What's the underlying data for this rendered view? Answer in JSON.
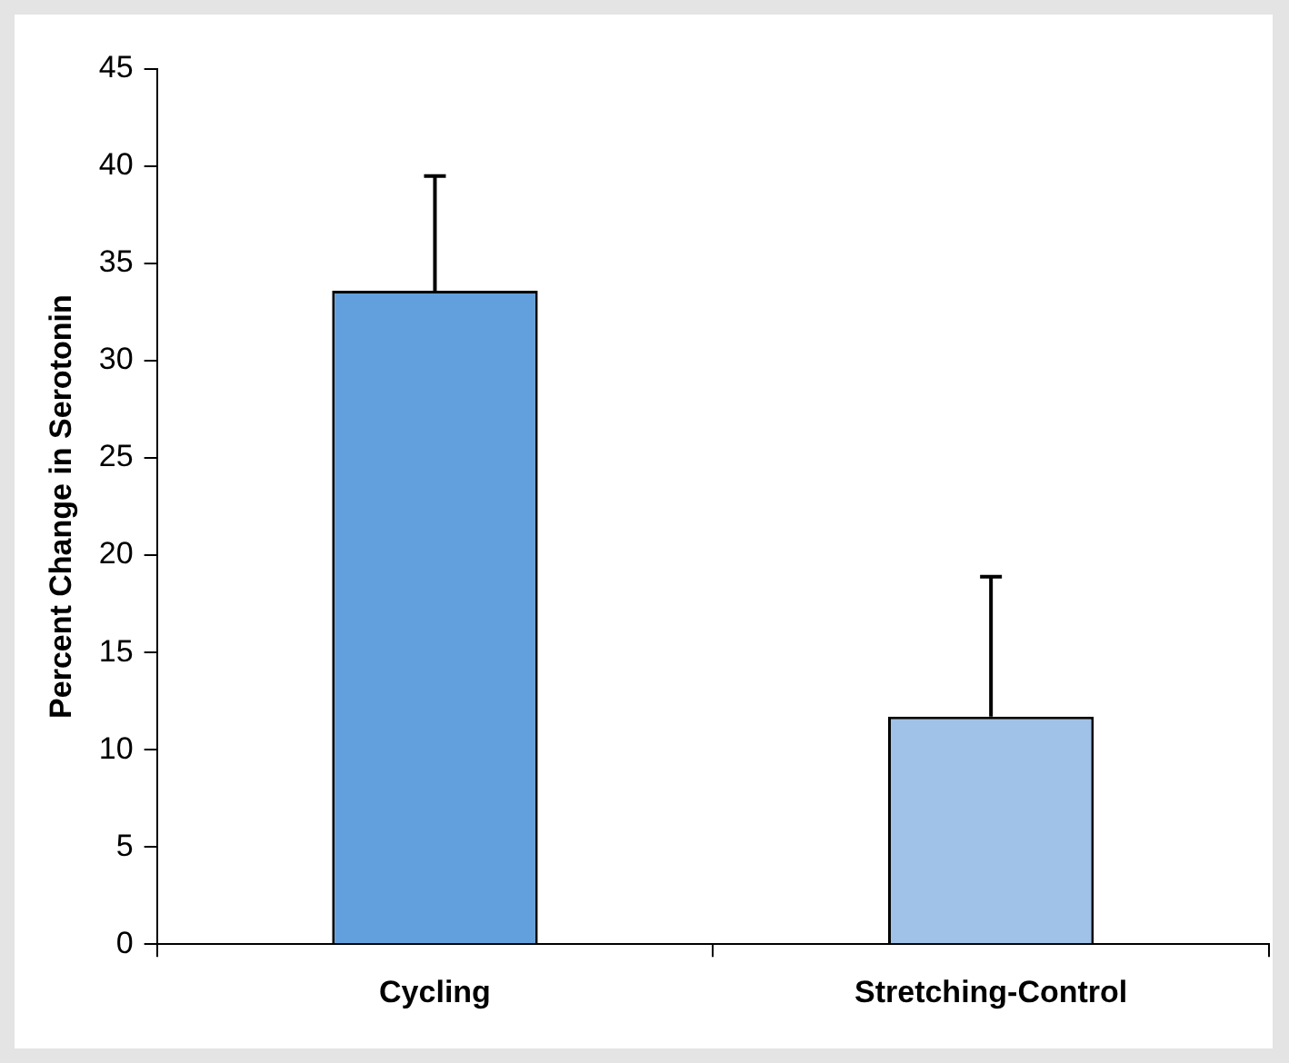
{
  "chart_data": {
    "type": "bar",
    "ylabel": "Percent Change in Serotonin",
    "categories": [
      "Cycling",
      "Stretching-Control"
    ],
    "values": [
      33.6,
      11.7
    ],
    "colors": [
      "#629fdd",
      "#a0c2e8"
    ],
    "errors": [
      [
        33.6,
        39.5
      ],
      [
        11.7,
        18.9
      ]
    ],
    "ylim": [
      0,
      45
    ],
    "yticks": [
      0,
      5,
      10,
      15,
      20,
      25,
      30,
      35,
      40,
      45
    ],
    "grid": false,
    "legend": false
  }
}
